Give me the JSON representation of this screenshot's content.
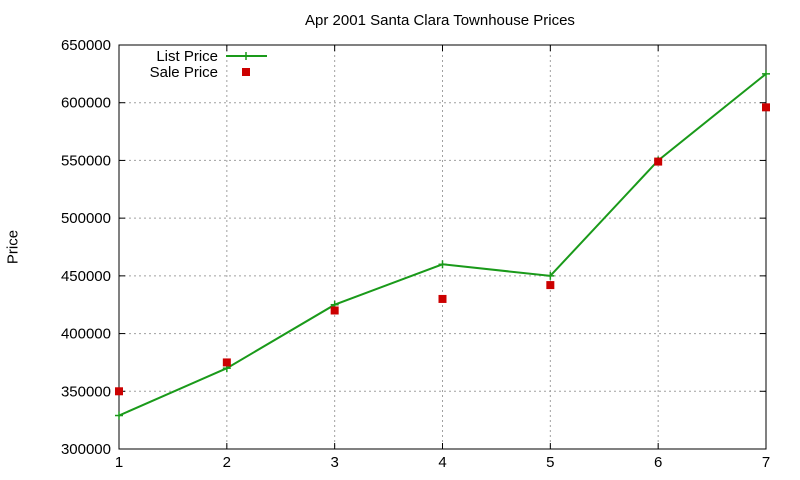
{
  "chart_data": {
    "type": "line",
    "title": "Apr 2001 Santa Clara Townhouse Prices",
    "xlabel": "",
    "ylabel": "Price",
    "x": [
      1,
      2,
      3,
      4,
      5,
      6,
      7
    ],
    "xlim": [
      1,
      7
    ],
    "ylim": [
      300000,
      650000
    ],
    "xticks": [
      "1",
      "2",
      "3",
      "4",
      "5",
      "6",
      "7"
    ],
    "yticks": [
      "300000",
      "350000",
      "400000",
      "450000",
      "500000",
      "550000",
      "600000",
      "650000"
    ],
    "grid": true,
    "legend_position": "top-left",
    "series": [
      {
        "name": "List Price",
        "style": "lines+points",
        "marker": "plus",
        "color": "#1a9a1a",
        "values": [
          329000,
          370000,
          425000,
          460000,
          450000,
          550000,
          625000
        ]
      },
      {
        "name": "Sale Price",
        "style": "points",
        "marker": "square",
        "color": "#cc0000",
        "values": [
          350000,
          375000,
          420000,
          430000,
          442000,
          549000,
          596000
        ]
      }
    ]
  }
}
